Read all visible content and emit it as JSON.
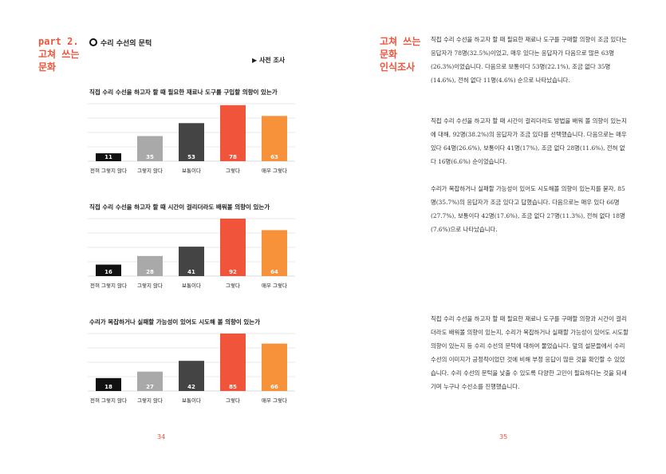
{
  "left_page": {
    "section_tag": [
      "part 2.",
      "고쳐 쓰는",
      "문화"
    ],
    "heading": "수리 수선의 문턱",
    "subheading": "▶ 사전 조사",
    "page_number": "34"
  },
  "right_page": {
    "section_tag": [
      "고쳐 쓰는",
      "문화",
      "인식조사"
    ],
    "paragraphs": [
      "직접 수리 수선을 하고자 할 때 필요한 재료나 도구를 구매할 의향이 조금 있다는 응답자가 78명(32.5%)이었고, 매우 있다는 응답자가 다음으로 많은 63명(26.3%)이었습니다. 다음으로 보통이다 53명(22.1%), 조금 없다 35명(14.6%), 전혀 없다 11명(4.6%) 순으로 나타났습니다.",
      "직접 수리 수선을 하고자 할 때 시간이 걸리더라도 방법을 배워 볼 의향이 있는지에 대해, 92명(38.2%)의 응답자가 조금 있다를 선택했습니다. 다음으로는 매우 있다 64명(26.6%), 보통이다 41명(17%), 조금 없다 28명(11.6%), 전혀 없다 16명(6.6%) 순이었습니다.",
      "수리가 복잡하거나 실패할 가능성이 있어도 시도해볼 의향이 있는지를 묻자, 85명(35.7%)의 응답자가 조금 있다고 답했습니다. 다음으로는 매우 있다 66명(27.7%), 보통이다 42명(17.6%), 조금 없다 27명(11.3%), 전혀 없다 18명(7.6%)으로 나타났습니다.",
      "직접 수리 수선을 하고자 할 때 필요한 재료나 도구를 구매할 의향과 시간이 걸리더라도 배워볼 의향이 있는지, 수리가 복잡하거나 실패할 가능성이 있어도 시도할 의향이 있는지 등 수리 수선의 문턱에 대하여 물었습니다. 앞의 설문들에서 수리 수선의 이미지가 긍정적이었던 것에 비해 부정 응답이 많은 것을 확인할 수 있었습니다. 수리 수선의 문턱을 낮출 수 있도록 다양한 고민이 필요하다는 것을 되새기며 누구나 수선소를 진행했습니다."
    ],
    "page_number": "35"
  },
  "colors": {
    "accent": "#f0543a",
    "bar_colors": [
      "#111111",
      "#a9a9a9",
      "#444444",
      "#f0543a",
      "#f7913a"
    ]
  },
  "chart_data": [
    {
      "type": "bar",
      "title": "직접 수리 수선을 하고자 할 때 필요한 재료나 도구를 구입할 의향이 있는가",
      "categories": [
        "전혀 그렇지 않다",
        "그렇지 않다",
        "보통이다",
        "그렇다",
        "매우 그렇다"
      ],
      "values": [
        11,
        35,
        53,
        78,
        63
      ],
      "grid": true
    },
    {
      "type": "bar",
      "title": "직접 수리 수선을 하고자 할 때 시간이 걸리더라도 배워볼 의향이 있는가",
      "categories": [
        "전혀 그렇지 않다",
        "그렇지 않다",
        "보통이다",
        "그렇다",
        "매우 그렇다"
      ],
      "values": [
        16,
        28,
        41,
        92,
        64
      ],
      "grid": true
    },
    {
      "type": "bar",
      "title": "수리가 복잡하거나 실패할 가능성이 있어도 시도해 볼 의향이 있는가",
      "categories": [
        "전혀 그렇지 않다",
        "그렇지 않다",
        "보통이다",
        "그렇다",
        "매우 그렇다"
      ],
      "values": [
        18,
        27,
        42,
        85,
        66
      ],
      "grid": true
    }
  ]
}
